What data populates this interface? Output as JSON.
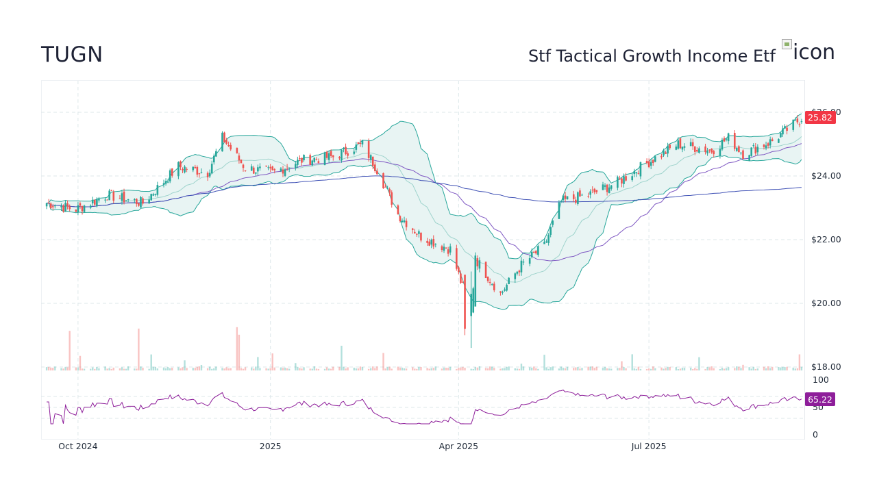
{
  "header": {
    "ticker": "TUGN",
    "name": "Stf Tactical Growth Income Etf",
    "logo_alt": "icon"
  },
  "colors": {
    "up": "#26a69a",
    "down": "#ef5350",
    "band_fill": "#e8f4f3",
    "band_line": "#26a69a",
    "sma_short": "#9ed3cc",
    "sma_mid": "#7e57c2",
    "sma_long": "#3f51b5",
    "rsi": "#8e1e9a",
    "last_price_badge": "#f23645",
    "rsi_badge": "#8e1e9a"
  },
  "chart_data": {
    "type": "candlestick",
    "y_axis": {
      "ticks": [
        "$18.00",
        "$20.00",
        "$22.00",
        "$24.00",
        "$26.00"
      ],
      "range": [
        18,
        26.3
      ]
    },
    "x_axis": {
      "ticks": [
        "Oct 2024",
        "2025",
        "Apr 2025",
        "Jul 2025"
      ]
    },
    "last_price": "25.82",
    "rsi": {
      "ticks": [
        "0",
        "50",
        "100"
      ],
      "range": [
        0,
        100
      ],
      "last_value": "65.22",
      "levels": [
        30,
        50,
        70
      ]
    },
    "grid": true,
    "overlays": [
      "Bollinger Bands",
      "SMA 20",
      "SMA 50",
      "SMA 200"
    ],
    "series_summary": [
      {
        "x": "2024-09-16",
        "close": 23.15
      },
      {
        "x": "2024-09-30",
        "close": 22.95
      },
      {
        "x": "2024-10-15",
        "close": 23.4
      },
      {
        "x": "2024-11-01",
        "close": 23.15
      },
      {
        "x": "2024-11-18",
        "close": 24.3
      },
      {
        "x": "2024-12-02",
        "close": 24.1
      },
      {
        "x": "2024-12-09",
        "close": 25.2
      },
      {
        "x": "2024-12-20",
        "close": 24.25
      },
      {
        "x": "2025-01-02",
        "close": 24.1
      },
      {
        "x": "2025-01-16",
        "close": 24.5
      },
      {
        "x": "2025-01-31",
        "close": 24.6
      },
      {
        "x": "2025-02-14",
        "close": 25.0
      },
      {
        "x": "2025-02-21",
        "close": 24.2
      },
      {
        "x": "2025-03-03",
        "close": 22.8
      },
      {
        "x": "2025-03-14",
        "close": 22.1
      },
      {
        "x": "2025-03-28",
        "close": 21.7
      },
      {
        "x": "2025-04-07",
        "close": 19.7
      },
      {
        "x": "2025-04-09",
        "close": 21.4
      },
      {
        "x": "2025-04-21",
        "close": 20.3
      },
      {
        "x": "2025-05-01",
        "close": 21.2
      },
      {
        "x": "2025-05-12",
        "close": 21.8
      },
      {
        "x": "2025-05-20",
        "close": 23.2
      },
      {
        "x": "2025-06-02",
        "close": 23.4
      },
      {
        "x": "2025-06-16",
        "close": 23.8
      },
      {
        "x": "2025-06-30",
        "close": 24.4
      },
      {
        "x": "2025-07-15",
        "close": 25.0
      },
      {
        "x": "2025-07-31",
        "close": 24.8
      },
      {
        "x": "2025-08-08",
        "close": 25.2
      },
      {
        "x": "2025-08-15",
        "close": 24.7
      },
      {
        "x": "2025-08-29",
        "close": 25.1
      },
      {
        "x": "2025-09-12",
        "close": 25.82
      }
    ]
  }
}
